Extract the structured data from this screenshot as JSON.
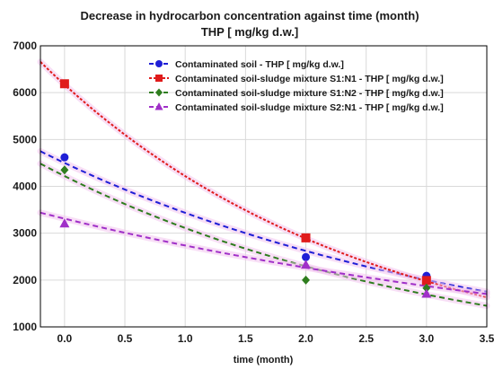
{
  "chart_data": {
    "type": "scatter",
    "title_line1": "Decrease in hydrocarbon concentration against time (month)",
    "title_line2": "THP [ mg/kg d.w.]",
    "xlabel": "time (month)",
    "ylabel": "",
    "xlim": [
      -0.2,
      3.5
    ],
    "ylim": [
      1000,
      7000
    ],
    "xticks": [
      0.0,
      0.5,
      1.0,
      1.5,
      2.0,
      2.5,
      3.0,
      3.5
    ],
    "xtick_labels": [
      "0.0",
      "0.5",
      "1.0",
      "1.5",
      "2.0",
      "2.5",
      "3.0",
      "3.5"
    ],
    "yticks": [
      1000,
      2000,
      3000,
      4000,
      5000,
      6000,
      7000
    ],
    "ytick_labels": [
      "1000",
      "2000",
      "3000",
      "4000",
      "5000",
      "6000",
      "7000"
    ],
    "grid": true,
    "legend_position": "top-right",
    "series": [
      {
        "name": "Contaminated soil  - THP [ mg/kg d.w.]",
        "color": "#1f1fd6",
        "marker": "circle",
        "x": [
          0,
          2,
          3
        ],
        "y": [
          4620,
          2490,
          2090
        ],
        "fit": {
          "a": 4500,
          "b": -0.27
        }
      },
      {
        "name": "Contaminated soil-sludge mixture S1:N1 - THP [ mg/kg d.w.]",
        "color": "#e01b1b",
        "marker": "square",
        "x": [
          0,
          2,
          3
        ],
        "y": [
          6190,
          2900,
          1990
        ],
        "fit": {
          "a": 6170,
          "b": -0.38
        }
      },
      {
        "name": "Contaminated soil-sludge mixture S1:N2 - THP [ mg/kg d.w.]",
        "color": "#2e7d1e",
        "marker": "diamond",
        "x": [
          0,
          2,
          3
        ],
        "y": [
          4350,
          2000,
          1830
        ],
        "fit": {
          "a": 4220,
          "b": -0.305
        }
      },
      {
        "name": "Contaminated soil-sludge mixture S2:N1 - THP [ mg/kg d.w.]",
        "color": "#a030c8",
        "marker": "triangle",
        "x": [
          0,
          2,
          3
        ],
        "y": [
          3200,
          2320,
          1700
        ],
        "fit": {
          "a": 3310,
          "b": -0.19
        }
      }
    ]
  }
}
